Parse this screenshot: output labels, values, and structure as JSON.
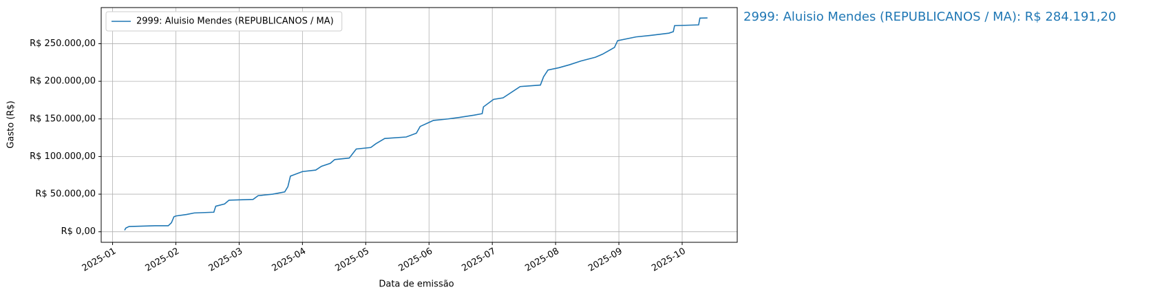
{
  "chart_data": {
    "type": "line",
    "drawstyle": "line",
    "xlabel": "Data de emissão",
    "ylabel": "Gasto (R$)",
    "annotation": "2999: Aluisio Mendes (REPUBLICANOS / MA): R$ 284.191,20",
    "grid": true,
    "legend": "upper left",
    "xlim": [
      0.82,
      10.87
    ],
    "xticks": [
      {
        "value": 1,
        "label": "2025-01"
      },
      {
        "value": 2,
        "label": "2025-02"
      },
      {
        "value": 3,
        "label": "2025-03"
      },
      {
        "value": 4,
        "label": "2025-04"
      },
      {
        "value": 5,
        "label": "2025-05"
      },
      {
        "value": 6,
        "label": "2025-06"
      },
      {
        "value": 7,
        "label": "2025-07"
      },
      {
        "value": 8,
        "label": "2025-08"
      },
      {
        "value": 9,
        "label": "2025-09"
      },
      {
        "value": 10,
        "label": "2025-10"
      }
    ],
    "ylim": [
      -14000,
      298000
    ],
    "yticks": [
      {
        "value": 0,
        "label": "R$ 0,00"
      },
      {
        "value": 50000,
        "label": "R$ 50.000,00"
      },
      {
        "value": 100000,
        "label": "R$ 100.000,00"
      },
      {
        "value": 150000,
        "label": "R$ 150.000,00"
      },
      {
        "value": 200000,
        "label": "R$ 200.000,00"
      },
      {
        "value": 250000,
        "label": "R$ 250.000,00"
      }
    ],
    "x": [
      1.19,
      1.21,
      1.26,
      1.67,
      1.88,
      1.93,
      1.97,
      2.0,
      2.17,
      2.29,
      2.6,
      2.63,
      2.77,
      2.84,
      3.22,
      3.3,
      3.53,
      3.72,
      3.77,
      3.81,
      4.0,
      4.21,
      4.3,
      4.44,
      4.51,
      4.74,
      4.85,
      5.08,
      5.16,
      5.3,
      5.64,
      5.8,
      5.86,
      5.99,
      6.07,
      6.3,
      6.48,
      6.71,
      6.84,
      6.86,
      7.02,
      7.17,
      7.44,
      7.76,
      7.81,
      7.88,
      8.05,
      8.22,
      8.4,
      8.63,
      8.74,
      8.93,
      8.98,
      9.27,
      9.5,
      9.79,
      9.86,
      9.88,
      10.26,
      10.28,
      10.4
    ],
    "series": [
      {
        "name": "2999: Aluisio Mendes (REPUBLICANOS / MA)",
        "color": "#1f77b4",
        "values": [
          2000,
          5000,
          7000,
          8000,
          8000,
          12000,
          20000,
          21000,
          23000,
          25000,
          26000,
          34000,
          37000,
          42000,
          43000,
          48000,
          50000,
          53000,
          60000,
          74000,
          80000,
          82000,
          87000,
          91000,
          96000,
          98000,
          110000,
          112000,
          117000,
          124000,
          126000,
          131000,
          140000,
          145000,
          148000,
          150000,
          152000,
          155000,
          157000,
          166000,
          176000,
          178000,
          193000,
          195000,
          206000,
          215000,
          218000,
          222000,
          227000,
          232000,
          236000,
          245000,
          254000,
          259000,
          261000,
          264000,
          266000,
          274000,
          275000,
          284000,
          284191.2
        ]
      }
    ]
  }
}
